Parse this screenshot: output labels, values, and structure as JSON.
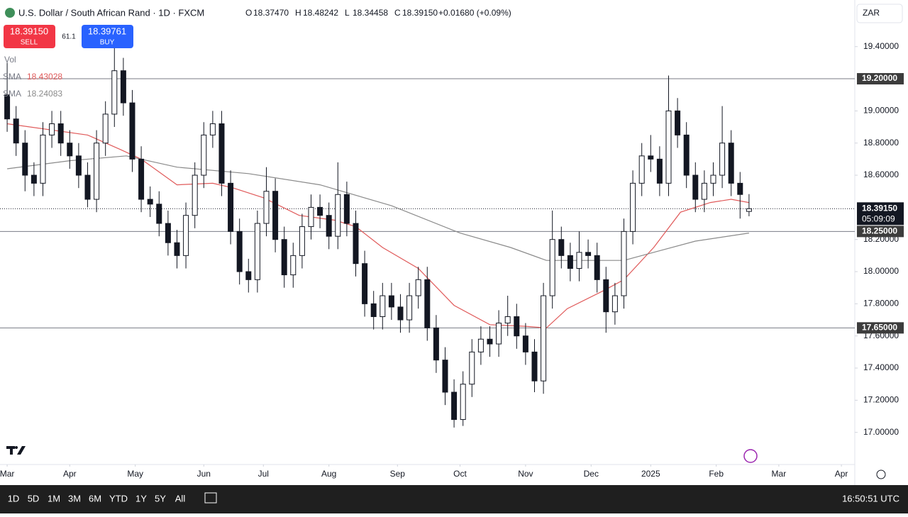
{
  "header": {
    "symbol_title": "U.S. Dollar / South African Rand · 1D · FXCM",
    "ohlc": [
      {
        "key": "O",
        "value": {
          "value": 18.3747,
          "label": "18.37470"
        }
      },
      {
        "key": "H",
        "value": {
          "value": 18.48242,
          "label": "18.48242"
        }
      },
      {
        "key": "L",
        "value": {
          "value": 18.34458,
          "label": "18.34458"
        }
      },
      {
        "key": "C",
        "value": {
          "value": 18.3915,
          "label": "18.39150"
        }
      }
    ],
    "change": "+0.01680 (+0.09%)",
    "currency": "ZAR"
  },
  "trade": {
    "sell": {
      "price": {
        "value": 18.3915,
        "label": "18.39150"
      },
      "caption": "SELL"
    },
    "spread": "61.1",
    "buy": {
      "price": {
        "value": 18.39761,
        "label": "18.39761"
      },
      "caption": "BUY"
    }
  },
  "volume_label": "Vol",
  "toolbar": {
    "ranges": [
      "1D",
      "5D",
      "1M",
      "3M",
      "6M",
      "YTD",
      "1Y",
      "5Y",
      "All"
    ],
    "clock": "16:50:51 UTC"
  },
  "chart_data": {
    "type": "candlestick",
    "up_color": "#ffffff",
    "down_color": "#131722",
    "grid": false,
    "xlim": [
      -2.4,
      284.5
    ],
    "ylim": [
      16.8,
      19.69
    ],
    "xticks": [
      {
        "value": 0,
        "label": "Mar"
      },
      {
        "value": 21,
        "label": "Apr"
      },
      {
        "value": 43,
        "label": "May"
      },
      {
        "value": 66,
        "label": "Jun"
      },
      {
        "value": 86,
        "label": "Jul"
      },
      {
        "value": 108,
        "label": "Aug"
      },
      {
        "value": 131,
        "label": "Sep"
      },
      {
        "value": 152,
        "label": "Oct"
      },
      {
        "value": 174,
        "label": "Nov"
      },
      {
        "value": 196,
        "label": "Dec"
      },
      {
        "value": 216,
        "label": "2025"
      },
      {
        "value": 238,
        "label": "Feb"
      },
      {
        "value": 259,
        "label": "Mar"
      },
      {
        "value": 280,
        "label": "Apr"
      }
    ],
    "yticks": [
      {
        "value": 19.4,
        "label": "19.40000"
      },
      {
        "value": 19.0,
        "label": "19.00000"
      },
      {
        "value": 18.8,
        "label": "18.80000"
      },
      {
        "value": 18.6,
        "label": "18.60000"
      },
      {
        "value": 18.2,
        "label": "18.20000"
      },
      {
        "value": 18.0,
        "label": "18.00000"
      },
      {
        "value": 17.8,
        "label": "17.80000"
      },
      {
        "value": 17.6,
        "label": "17.60000"
      },
      {
        "value": 17.4,
        "label": "17.40000"
      },
      {
        "value": 17.2,
        "label": "17.20000"
      },
      {
        "value": 17.0,
        "label": "17.00000"
      }
    ],
    "levels": [
      {
        "value": 19.2,
        "label": "19.20000"
      },
      {
        "value": 18.25,
        "label": "18.25000"
      },
      {
        "value": 17.65,
        "label": "17.65000"
      }
    ],
    "last_price": {
      "value": 18.3915,
      "label": "18.39150",
      "countdown": "05:09:09"
    },
    "candles": [
      [
        0,
        19.1,
        19.3,
        18.87,
        18.95
      ],
      [
        3,
        18.95,
        19.03,
        18.72,
        18.8
      ],
      [
        6,
        18.8,
        18.88,
        18.5,
        18.6
      ],
      [
        9,
        18.6,
        18.68,
        18.47,
        18.55
      ],
      [
        12,
        18.55,
        18.93,
        18.47,
        18.85
      ],
      [
        15,
        18.85,
        19.0,
        18.77,
        18.92
      ],
      [
        18,
        18.92,
        19.0,
        18.72,
        18.8
      ],
      [
        21,
        18.8,
        18.88,
        18.64,
        18.72
      ],
      [
        24,
        18.72,
        18.8,
        18.52,
        18.6
      ],
      [
        27,
        18.6,
        18.68,
        18.4,
        18.45
      ],
      [
        30,
        18.45,
        18.88,
        18.37,
        18.8
      ],
      [
        33,
        18.8,
        19.06,
        18.72,
        18.98
      ],
      [
        36,
        18.98,
        19.5,
        18.9,
        19.25
      ],
      [
        39,
        19.25,
        19.33,
        18.97,
        19.05
      ],
      [
        42,
        19.05,
        19.13,
        18.62,
        18.7
      ],
      [
        45,
        18.7,
        18.78,
        18.37,
        18.45
      ],
      [
        48,
        18.45,
        18.53,
        18.34,
        18.42
      ],
      [
        51,
        18.42,
        18.5,
        18.22,
        18.3
      ],
      [
        54,
        18.3,
        18.38,
        18.1,
        18.18
      ],
      [
        57,
        18.18,
        18.26,
        18.02,
        18.1
      ],
      [
        60,
        18.1,
        18.43,
        18.02,
        18.35
      ],
      [
        63,
        18.35,
        18.68,
        18.27,
        18.6
      ],
      [
        66,
        18.6,
        18.93,
        18.52,
        18.85
      ],
      [
        69,
        18.85,
        19.0,
        18.77,
        18.92
      ],
      [
        72,
        18.92,
        19.0,
        18.47,
        18.55
      ],
      [
        75,
        18.55,
        18.63,
        18.17,
        18.25
      ],
      [
        78,
        18.25,
        18.33,
        17.92,
        18.0
      ],
      [
        81,
        18.0,
        18.08,
        17.87,
        17.95
      ],
      [
        84,
        17.95,
        18.38,
        17.87,
        18.3
      ],
      [
        87,
        18.3,
        18.65,
        18.22,
        18.5
      ],
      [
        90,
        18.5,
        18.58,
        18.12,
        18.2
      ],
      [
        93,
        18.2,
        18.28,
        17.9,
        17.98
      ],
      [
        96,
        17.98,
        18.18,
        17.9,
        18.1
      ],
      [
        99,
        18.1,
        18.36,
        18.02,
        18.28
      ],
      [
        102,
        18.28,
        18.48,
        18.2,
        18.4
      ],
      [
        105,
        18.4,
        18.48,
        18.27,
        18.35
      ],
      [
        108,
        18.35,
        18.43,
        18.14,
        18.22
      ],
      [
        111,
        18.22,
        18.68,
        18.14,
        18.48
      ],
      [
        114,
        18.48,
        18.56,
        18.22,
        18.3
      ],
      [
        117,
        18.3,
        18.38,
        17.97,
        18.05
      ],
      [
        120,
        18.05,
        18.13,
        17.72,
        17.8
      ],
      [
        123,
        17.8,
        17.88,
        17.64,
        17.72
      ],
      [
        126,
        17.72,
        17.93,
        17.64,
        17.85
      ],
      [
        129,
        17.85,
        17.93,
        17.7,
        17.78
      ],
      [
        132,
        17.78,
        17.86,
        17.62,
        17.7
      ],
      [
        135,
        17.7,
        17.93,
        17.62,
        17.85
      ],
      [
        138,
        17.85,
        18.03,
        17.77,
        17.95
      ],
      [
        141,
        17.95,
        18.03,
        17.57,
        17.65
      ],
      [
        144,
        17.65,
        17.73,
        17.37,
        17.45
      ],
      [
        147,
        17.45,
        17.53,
        17.17,
        17.25
      ],
      [
        150,
        17.25,
        17.33,
        17.03,
        17.08
      ],
      [
        153,
        17.08,
        17.38,
        17.04,
        17.3
      ],
      [
        156,
        17.3,
        17.58,
        17.22,
        17.5
      ],
      [
        159,
        17.5,
        17.66,
        17.42,
        17.58
      ],
      [
        162,
        17.58,
        17.66,
        17.47,
        17.55
      ],
      [
        165,
        17.55,
        17.76,
        17.47,
        17.68
      ],
      [
        168,
        17.68,
        17.85,
        17.6,
        17.72
      ],
      [
        171,
        17.72,
        17.8,
        17.52,
        17.6
      ],
      [
        174,
        17.6,
        17.68,
        17.42,
        17.5
      ],
      [
        177,
        17.5,
        17.58,
        17.25,
        17.32
      ],
      [
        180,
        17.32,
        17.93,
        17.24,
        17.85
      ],
      [
        183,
        17.85,
        18.38,
        17.77,
        18.2
      ],
      [
        186,
        18.2,
        18.28,
        18.02,
        18.1
      ],
      [
        189,
        18.1,
        18.18,
        17.94,
        18.02
      ],
      [
        192,
        18.02,
        18.25,
        17.94,
        18.12
      ],
      [
        195,
        18.12,
        18.2,
        18.02,
        18.1
      ],
      [
        198,
        18.1,
        18.18,
        17.87,
        17.95
      ],
      [
        201,
        17.95,
        18.03,
        17.62,
        17.75
      ],
      [
        204,
        17.75,
        17.93,
        17.67,
        17.85
      ],
      [
        207,
        17.85,
        18.33,
        17.77,
        18.25
      ],
      [
        210,
        18.25,
        18.63,
        18.17,
        18.55
      ],
      [
        213,
        18.55,
        18.8,
        18.47,
        18.72
      ],
      [
        216,
        18.72,
        18.85,
        18.62,
        18.7
      ],
      [
        219,
        18.7,
        18.78,
        18.47,
        18.55
      ],
      [
        222,
        18.55,
        19.22,
        18.47,
        19.0
      ],
      [
        225,
        19.0,
        19.08,
        18.77,
        18.85
      ],
      [
        228,
        18.85,
        18.93,
        18.52,
        18.6
      ],
      [
        231,
        18.6,
        18.68,
        18.37,
        18.45
      ],
      [
        234,
        18.45,
        18.63,
        18.37,
        18.55
      ],
      [
        237,
        18.55,
        18.68,
        18.47,
        18.6
      ],
      [
        240,
        18.6,
        19.03,
        18.52,
        18.8
      ],
      [
        243,
        18.8,
        18.88,
        18.47,
        18.55
      ],
      [
        246,
        18.55,
        18.62,
        18.33,
        18.48
      ],
      [
        249,
        18.3747,
        18.48242,
        18.34458,
        18.3915
      ]
    ],
    "series": [
      {
        "name": "SMA",
        "color": "#e05a5a",
        "legend_value": {
          "value": 18.43028,
          "label": "18.43028"
        },
        "x": [
          0,
          27,
          38,
          45,
          57,
          69,
          76,
          86,
          98,
          110,
          117,
          126,
          138,
          150,
          162,
          174,
          181,
          188,
          200,
          207,
          217,
          226,
          236,
          243,
          249
        ],
        "values": [
          18.92,
          18.85,
          18.76,
          18.7,
          18.54,
          18.55,
          18.52,
          18.46,
          18.35,
          18.32,
          18.28,
          18.15,
          18.02,
          17.79,
          17.67,
          17.66,
          17.65,
          17.77,
          17.88,
          17.95,
          18.15,
          18.37,
          18.43,
          18.45,
          18.43
        ]
      },
      {
        "name": "SMA",
        "color": "#8a8a8a",
        "legend_value": {
          "value": 18.24083,
          "label": "18.24083"
        },
        "x": [
          0,
          21,
          40,
          57,
          81,
          105,
          129,
          152,
          169,
          181,
          195,
          207,
          219,
          231,
          249
        ],
        "values": [
          18.64,
          18.69,
          18.72,
          18.65,
          18.61,
          18.54,
          18.41,
          18.24,
          18.15,
          18.07,
          18.07,
          18.07,
          18.13,
          18.19,
          18.24
        ]
      }
    ]
  }
}
